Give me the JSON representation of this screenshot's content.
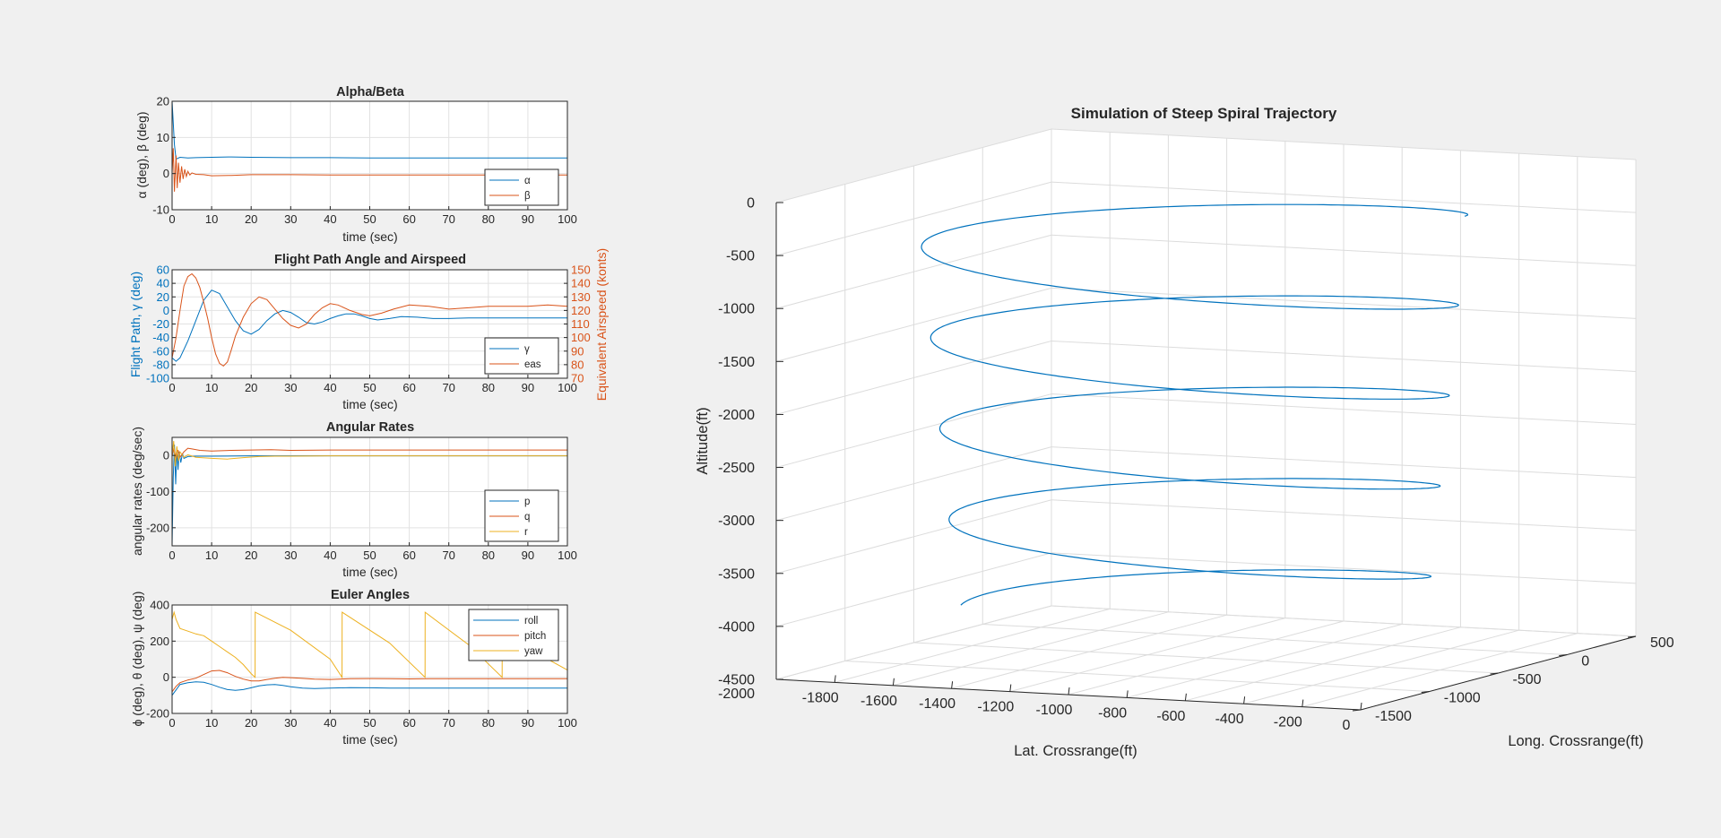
{
  "colors": {
    "blue": "#0072BD",
    "orange": "#D95319",
    "yellow": "#EDB120",
    "grid": "#e2e2e2",
    "axis": "#262626"
  },
  "chart_data": [
    {
      "type": "line",
      "title": "Alpha/Beta",
      "xlabel": "time (sec)",
      "ylabel": "α (deg), β (deg)",
      "xlim": [
        0,
        100
      ],
      "ylim": [
        -10,
        20
      ],
      "xticks": [
        0,
        10,
        20,
        30,
        40,
        50,
        60,
        70,
        80,
        90,
        100
      ],
      "yticks": [
        -10,
        0,
        10,
        20
      ],
      "grid": true,
      "legend": "bottom-right",
      "series": [
        {
          "name": "α",
          "color": "blue",
          "x": [
            0,
            0.3,
            0.6,
            1,
            2,
            4,
            6,
            10,
            15,
            20,
            30,
            40,
            50,
            60,
            70,
            80,
            90,
            100
          ],
          "y": [
            20,
            14,
            8,
            4,
            4.5,
            4.3,
            4.4,
            4.5,
            4.6,
            4.5,
            4.4,
            4.4,
            4.3,
            4.3,
            4.3,
            4.3,
            4.3,
            4.3
          ]
        },
        {
          "name": "β",
          "color": "orange",
          "x": [
            0,
            0.3,
            0.6,
            1,
            1.3,
            1.6,
            2,
            2.4,
            2.8,
            3.2,
            3.6,
            4,
            4.5,
            5,
            6,
            8,
            10,
            15,
            20,
            30,
            40,
            50,
            60,
            70,
            80,
            90,
            100
          ],
          "y": [
            0,
            7,
            -5,
            5,
            -4,
            3,
            -2.5,
            2,
            -1.5,
            1.2,
            -0.8,
            0.6,
            -0.4,
            0.2,
            -0.2,
            -0.3,
            -0.6,
            -0.5,
            -0.3,
            -0.3,
            -0.4,
            -0.4,
            -0.4,
            -0.4,
            -0.4,
            -0.4,
            -0.4
          ]
        }
      ]
    },
    {
      "type": "line",
      "title": "Flight Path Angle and Airspeed",
      "xlabel": "time (sec)",
      "ylabel": "Flight Path, γ (deg)",
      "ylabel_right": "Equivalent Airspeed (konts)",
      "xlim": [
        0,
        100
      ],
      "ylim": [
        -100,
        60
      ],
      "ylim_right": [
        70,
        150
      ],
      "xticks": [
        0,
        10,
        20,
        30,
        40,
        50,
        60,
        70,
        80,
        90,
        100
      ],
      "yticks": [
        -100,
        -80,
        -60,
        -40,
        -20,
        0,
        20,
        40,
        60
      ],
      "yticks_right": [
        70,
        80,
        90,
        100,
        110,
        120,
        130,
        140,
        150
      ],
      "grid": true,
      "legend": "bottom-right",
      "series": [
        {
          "name": "γ",
          "color": "blue",
          "axis": "left",
          "x": [
            0,
            1,
            2,
            4,
            6,
            8,
            10,
            12,
            14,
            16,
            18,
            20,
            22,
            24,
            26,
            28,
            30,
            32,
            34,
            36,
            38,
            40,
            42,
            44,
            46,
            48,
            50,
            52,
            55,
            58,
            62,
            66,
            70,
            75,
            80,
            85,
            90,
            95,
            100
          ],
          "y": [
            -70,
            -75,
            -70,
            -45,
            -15,
            15,
            30,
            25,
            5,
            -15,
            -30,
            -35,
            -28,
            -15,
            -5,
            0,
            -3,
            -10,
            -18,
            -20,
            -17,
            -12,
            -8,
            -5,
            -5,
            -8,
            -12,
            -14,
            -12,
            -9,
            -10,
            -12,
            -12,
            -11,
            -11,
            -11,
            -11,
            -11,
            -11
          ]
        },
        {
          "name": "eas",
          "color": "orange",
          "axis": "right",
          "x": [
            0,
            1,
            2,
            3,
            4,
            5,
            6,
            7,
            8,
            9,
            10,
            11,
            12,
            13,
            14,
            15,
            16,
            18,
            20,
            22,
            24,
            26,
            28,
            30,
            32,
            34,
            36,
            38,
            40,
            42,
            45,
            48,
            50,
            53,
            56,
            60,
            65,
            70,
            75,
            80,
            85,
            90,
            95,
            100
          ],
          "y": [
            85,
            100,
            120,
            138,
            145,
            147,
            144,
            137,
            126,
            114,
            100,
            88,
            81,
            79,
            82,
            91,
            101,
            115,
            125,
            130,
            128,
            121,
            114,
            109,
            107,
            110,
            117,
            122,
            125,
            124,
            120,
            117,
            116,
            118,
            121,
            124,
            123,
            121,
            122,
            123,
            123,
            123,
            124,
            123
          ]
        }
      ]
    },
    {
      "type": "line",
      "title": "Angular Rates",
      "xlabel": "time (sec)",
      "ylabel": "angular rates (deg/sec)",
      "xlim": [
        0,
        100
      ],
      "ylim": [
        -250,
        50
      ],
      "xticks": [
        0,
        10,
        20,
        30,
        40,
        50,
        60,
        70,
        80,
        90,
        100
      ],
      "yticks": [
        -200,
        -100,
        0
      ],
      "grid": true,
      "legend": "bottom-right",
      "series": [
        {
          "name": "p",
          "color": "blue",
          "x": [
            0,
            0.3,
            0.6,
            0.9,
            1.2,
            1.5,
            1.8,
            2.2,
            2.6,
            3,
            4,
            6,
            10,
            20,
            40,
            60,
            80,
            100
          ],
          "y": [
            -260,
            -60,
            30,
            -80,
            20,
            -40,
            10,
            -20,
            5,
            -8,
            -3,
            -2,
            -2,
            -1,
            -1,
            -1,
            -1,
            -1
          ]
        },
        {
          "name": "q",
          "color": "orange",
          "x": [
            0,
            0.5,
            1,
            1.5,
            2,
            3,
            4,
            5,
            7,
            10,
            15,
            20,
            25,
            30,
            40,
            50,
            60,
            70,
            80,
            90,
            100
          ],
          "y": [
            0,
            20,
            -10,
            15,
            -5,
            10,
            20,
            18,
            14,
            12,
            14,
            15,
            16,
            14,
            15,
            15,
            15,
            15,
            15,
            15,
            15
          ]
        },
        {
          "name": "r",
          "color": "yellow",
          "x": [
            0,
            0.4,
            0.8,
            1.2,
            1.6,
            2,
            3,
            4,
            6,
            10,
            14,
            18,
            22,
            26,
            30,
            40,
            50,
            60,
            70,
            80,
            90,
            100
          ],
          "y": [
            0,
            40,
            -30,
            25,
            -15,
            10,
            -5,
            2,
            -5,
            -8,
            -10,
            -6,
            -3,
            -2,
            -2,
            -1,
            -1,
            -1,
            -1,
            -1,
            -1,
            -1
          ]
        }
      ]
    },
    {
      "type": "line",
      "title": "Euler Angles",
      "xlabel": "time (sec)",
      "ylabel": "ϕ (deg), θ (deg), ψ (deg)",
      "xlim": [
        0,
        100
      ],
      "ylim": [
        -200,
        400
      ],
      "xticks": [
        0,
        10,
        20,
        30,
        40,
        50,
        60,
        70,
        80,
        90,
        100
      ],
      "yticks": [
        -200,
        0,
        200,
        400
      ],
      "grid": true,
      "legend": "top-right",
      "series": [
        {
          "name": "roll",
          "color": "blue",
          "x": [
            0,
            1,
            2,
            4,
            6,
            8,
            10,
            12,
            14,
            16,
            18,
            20,
            22,
            24,
            26,
            28,
            30,
            33,
            36,
            40,
            45,
            50,
            55,
            60,
            70,
            80,
            90,
            100
          ],
          "y": [
            -100,
            -70,
            -40,
            -30,
            -25,
            -28,
            -40,
            -55,
            -68,
            -72,
            -68,
            -58,
            -48,
            -42,
            -40,
            -45,
            -52,
            -60,
            -62,
            -60,
            -57,
            -58,
            -60,
            -60,
            -60,
            -60,
            -60,
            -60
          ]
        },
        {
          "name": "pitch",
          "color": "orange",
          "x": [
            0,
            1,
            2,
            4,
            6,
            8,
            10,
            12,
            14,
            16,
            18,
            20,
            22,
            24,
            26,
            28,
            30,
            33,
            36,
            40,
            45,
            50,
            55,
            60,
            65,
            70,
            80,
            90,
            100
          ],
          "y": [
            -80,
            -50,
            -30,
            -15,
            -5,
            15,
            35,
            38,
            25,
            5,
            -10,
            -20,
            -20,
            -12,
            -5,
            0,
            -2,
            -6,
            -10,
            -12,
            -8,
            -7,
            -8,
            -9,
            -8,
            -8,
            -8,
            -8,
            -8
          ]
        },
        {
          "name": "yaw",
          "color": "yellow",
          "x": [
            0,
            0.5,
            1,
            2,
            4,
            6,
            8,
            10,
            12,
            14,
            16,
            18,
            20,
            21,
            21.01,
            30,
            40,
            43,
            43.01,
            55,
            64,
            64.01,
            75,
            83.5,
            83.51,
            95,
            100
          ],
          "y": [
            320,
            360,
            320,
            270,
            255,
            240,
            230,
            200,
            170,
            140,
            110,
            70,
            20,
            0,
            360,
            260,
            100,
            0,
            360,
            190,
            0,
            360,
            180,
            0,
            360,
            100,
            40
          ]
        }
      ]
    },
    {
      "type": "line3d",
      "title": "Simulation of Steep Spiral Trajectory",
      "xlabel": "Lat. Crossrange(ft)",
      "ylabel": "Long. Crossrange(ft)",
      "zlabel": "Altitude(ft)",
      "xlim": [
        -2000,
        0
      ],
      "ylim": [
        -1500,
        500
      ],
      "zlim": [
        -4500,
        0
      ],
      "xticks": [
        -2000,
        -1800,
        -1600,
        -1400,
        -1200,
        -1000,
        -800,
        -600,
        -400,
        -200,
        0
      ],
      "yticks": [
        -1500,
        -1000,
        -500,
        0,
        500
      ],
      "zticks": [
        -4500,
        -4000,
        -3500,
        -3000,
        -2500,
        -2000,
        -1500,
        -1000,
        -500,
        0
      ],
      "grid": true,
      "spiral": {
        "turns": 4.5,
        "z_start": -200,
        "z_end": -4050
      }
    }
  ]
}
